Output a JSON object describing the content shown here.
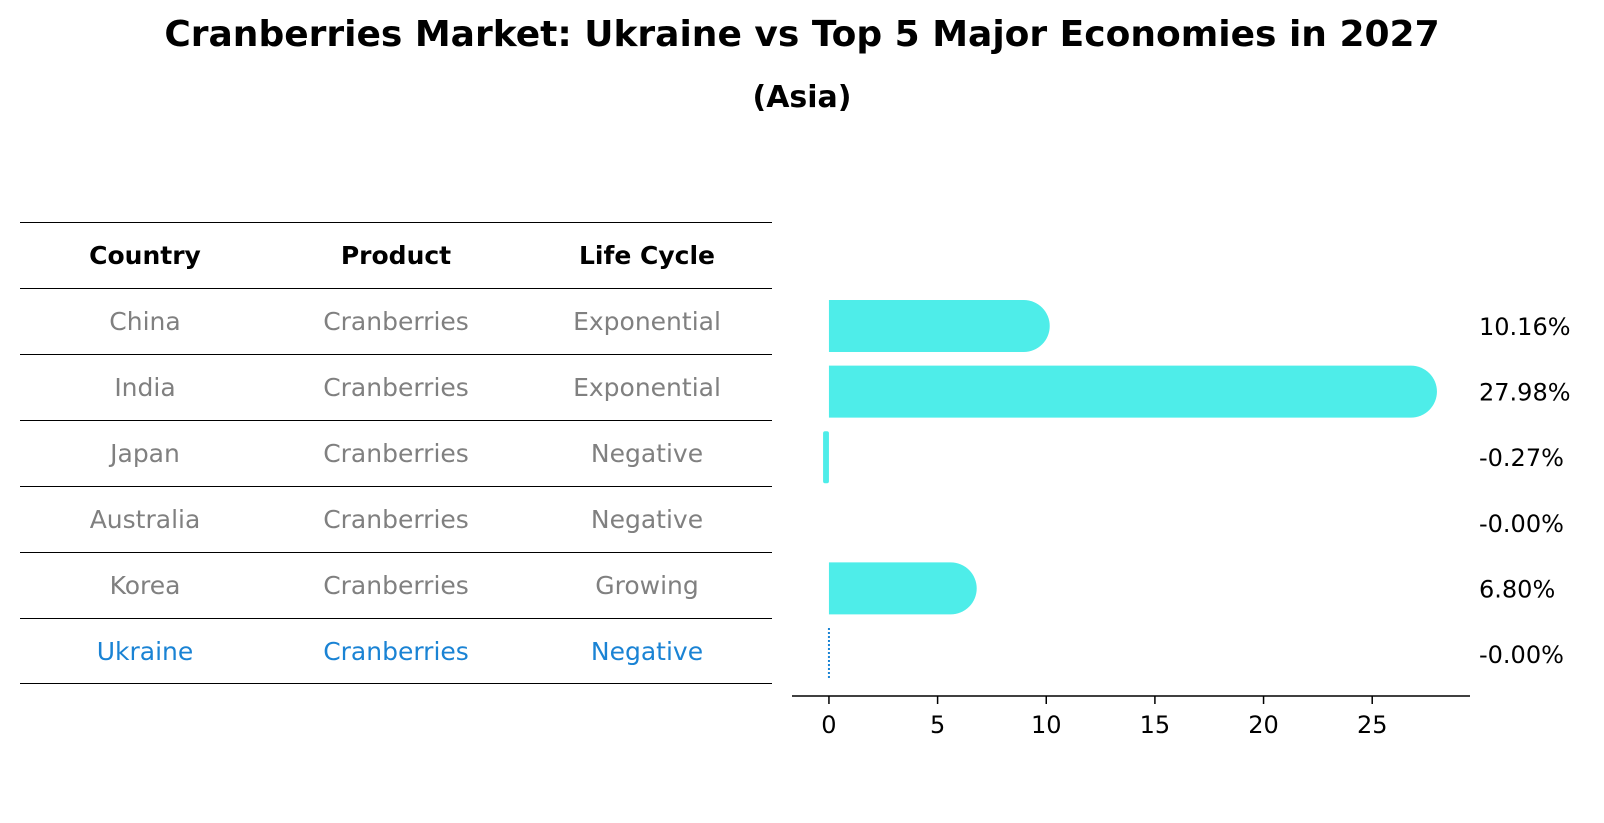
{
  "title": "Cranberries Market: Ukraine vs Top 5 Major Economies in 2027",
  "subtitle": "(Asia)",
  "colors": {
    "bar": "#4EEDE9",
    "highlight_text": "#1A83D4",
    "muted_text": "#808080",
    "header_text": "#000000"
  },
  "table": {
    "headers": [
      "Country",
      "Product",
      "Life Cycle"
    ],
    "rows": [
      {
        "country": "China",
        "product": "Cranberries",
        "life_cycle": "Exponential",
        "highlight": false
      },
      {
        "country": "India",
        "product": "Cranberries",
        "life_cycle": "Exponential",
        "highlight": false
      },
      {
        "country": "Japan",
        "product": "Cranberries",
        "life_cycle": "Negative",
        "highlight": false
      },
      {
        "country": "Australia",
        "product": "Cranberries",
        "life_cycle": "Negative",
        "highlight": false
      },
      {
        "country": "Korea",
        "product": "Cranberries",
        "life_cycle": "Growing",
        "highlight": false
      },
      {
        "country": "Ukraine",
        "product": "Cranberries",
        "life_cycle": "Negative",
        "highlight": true
      }
    ]
  },
  "chart_data": {
    "type": "bar",
    "orientation": "horizontal",
    "categories": [
      "China",
      "India",
      "Japan",
      "Australia",
      "Korea",
      "Ukraine"
    ],
    "values": [
      10.16,
      27.98,
      -0.27,
      -0.0,
      6.8,
      -0.0
    ],
    "value_labels": [
      "10.16%",
      "27.98%",
      "-0.27%",
      "-0.00%",
      "6.80%",
      "-0.00%"
    ],
    "x_ticks": [
      0,
      5,
      10,
      15,
      20,
      25
    ],
    "xlim": [
      -1.7,
      29.5
    ],
    "xlabel": "",
    "ylabel": "",
    "grid": false,
    "highlight_category": "Ukraine"
  }
}
